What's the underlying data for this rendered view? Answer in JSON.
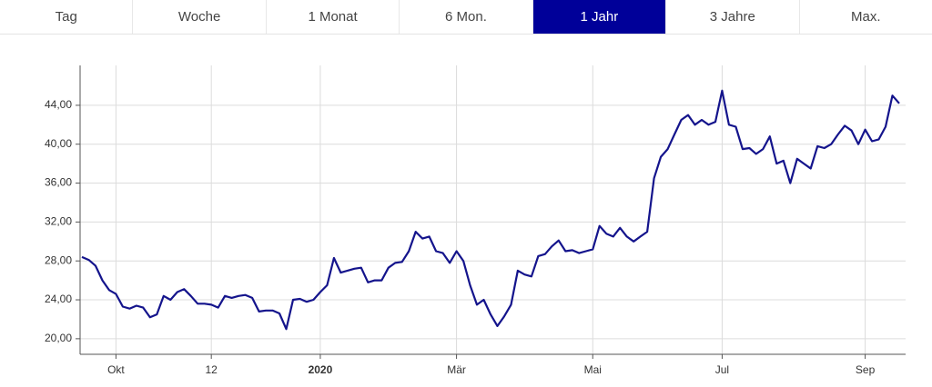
{
  "tabs": [
    "Tag",
    "Woche",
    "1 Monat",
    "6 Mon.",
    "1 Jahr",
    "3 Jahre",
    "Max."
  ],
  "active_tab": 4,
  "chart_data": {
    "type": "line",
    "color": "#14148c",
    "grid": true,
    "values": [
      28.4,
      28.1,
      27.5,
      26.0,
      25.0,
      24.6,
      23.3,
      23.1,
      23.4,
      23.2,
      22.2,
      22.5,
      24.4,
      24.0,
      24.8,
      25.1,
      24.4,
      23.6,
      23.6,
      23.5,
      23.2,
      24.4,
      24.2,
      24.4,
      24.5,
      24.2,
      22.8,
      22.9,
      22.9,
      22.6,
      21.0,
      24.0,
      24.1,
      23.8,
      24.0,
      24.8,
      25.5,
      28.3,
      26.8,
      27.0,
      27.2,
      27.3,
      25.8,
      26.0,
      26.0,
      27.3,
      27.8,
      27.9,
      29.0,
      31.0,
      30.3,
      30.5,
      29.0,
      28.8,
      27.8,
      29.0,
      28.0,
      25.5,
      23.5,
      24.0,
      22.5,
      21.3,
      22.3,
      23.5,
      27.0,
      26.6,
      26.4,
      28.5,
      28.7,
      29.5,
      30.1,
      29.0,
      29.1,
      28.8,
      29.0,
      29.2,
      31.6,
      30.8,
      30.5,
      31.4,
      30.5,
      30.0,
      30.5,
      31.0,
      36.5,
      38.7,
      39.5,
      41.0,
      42.5,
      43.0,
      42.0,
      42.5,
      42.0,
      42.3,
      45.5,
      42.0,
      41.8,
      39.5,
      39.6,
      39.0,
      39.5,
      40.8,
      38.0,
      38.3,
      36.0,
      38.5,
      38.0,
      37.5,
      39.8,
      39.6,
      40.0,
      41.0,
      41.9,
      41.4,
      40.0,
      41.5,
      40.3,
      40.5,
      41.8,
      45.0,
      44.2
    ],
    "xlim": [
      0,
      120
    ],
    "xticks": [
      {
        "value": 5,
        "label": "Okt"
      },
      {
        "value": 19,
        "label": "12"
      },
      {
        "value": 35,
        "label": "2020"
      },
      {
        "value": 55,
        "label": "Mär"
      },
      {
        "value": 75,
        "label": "Mai"
      },
      {
        "value": 94,
        "label": "Jul"
      },
      {
        "value": 115,
        "label": "Sep"
      }
    ],
    "ylim": [
      18.4,
      48.1
    ],
    "yticks": [
      {
        "value": 20,
        "label": "20,00"
      },
      {
        "value": 24,
        "label": "24,00"
      },
      {
        "value": 28,
        "label": "28,00"
      },
      {
        "value": 32,
        "label": "32,00"
      },
      {
        "value": 36,
        "label": "36,00"
      },
      {
        "value": 40,
        "label": "40,00"
      },
      {
        "value": 44,
        "label": "44,00"
      }
    ]
  }
}
